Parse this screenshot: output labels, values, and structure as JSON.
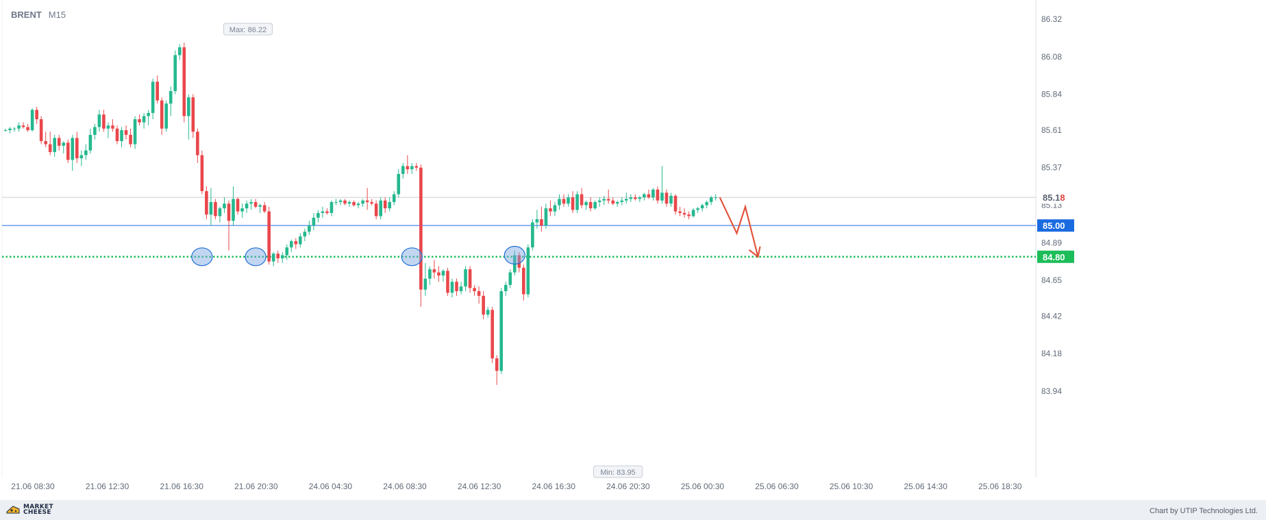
{
  "symbol": {
    "name": "BRENT",
    "timeframe": "M15"
  },
  "footer": {
    "logo_line1": "MARKET",
    "logo_line2": "CHEESE",
    "credit": "Chart by UTIP Technologies Ltd."
  },
  "colors": {
    "bull": "#25b88e",
    "bear": "#e9474b",
    "support": "#1dbd5a",
    "level_line": "#1a6be0",
    "current_line": "#c9ccd2",
    "arrow": "#e0533c",
    "marker": "#1f6fd6"
  },
  "chart_data": {
    "type": "candlestick",
    "ylim": [
      83.83,
      86.4
    ],
    "y_ticks": [
      "86.32",
      "86.08",
      "85.84",
      "85.61",
      "85.37",
      "85.13",
      "84.89",
      "84.65",
      "84.42",
      "84.18",
      "83.94"
    ],
    "x_ticks": [
      "21.06 08:30",
      "21.06 12:30",
      "21.06 16:30",
      "21.06 20:30",
      "24.06 04:30",
      "24.06 08:30",
      "24.06 12:30",
      "24.06 16:30",
      "24.06 20:30",
      "25.06 00:30",
      "25.06 06:30",
      "25.06 10:30",
      "25.06 14:30",
      "25.06 18:30"
    ],
    "max_label": "Max: 86.22",
    "min_label": "Min: 83.95",
    "levels": [
      {
        "label": "85.00",
        "value": 85.0,
        "style": "solid"
      },
      {
        "label": "84.80",
        "value": 84.8,
        "style": "dotted"
      },
      {
        "label_main": "85.1",
        "label_accent": "8",
        "value": 85.18,
        "style": "current"
      }
    ],
    "candles": [
      [
        85.61,
        85.62,
        85.6,
        85.61
      ],
      [
        85.61,
        85.63,
        85.59,
        85.62
      ],
      [
        85.62,
        85.63,
        85.6,
        85.62
      ],
      [
        85.62,
        85.66,
        85.6,
        85.64
      ],
      [
        85.64,
        85.66,
        85.62,
        85.63
      ],
      [
        85.63,
        85.65,
        85.6,
        85.61
      ],
      [
        85.61,
        85.75,
        85.6,
        85.74
      ],
      [
        85.74,
        85.76,
        85.65,
        85.68
      ],
      [
        85.68,
        85.7,
        85.52,
        85.54
      ],
      [
        85.54,
        85.6,
        85.5,
        85.52
      ],
      [
        85.52,
        85.6,
        85.45,
        85.47
      ],
      [
        85.47,
        85.58,
        85.44,
        85.56
      ],
      [
        85.56,
        85.58,
        85.48,
        85.51
      ],
      [
        85.51,
        85.54,
        85.46,
        85.53
      ],
      [
        85.53,
        85.55,
        85.4,
        85.42
      ],
      [
        85.42,
        85.58,
        85.35,
        85.56
      ],
      [
        85.56,
        85.6,
        85.4,
        85.43
      ],
      [
        85.43,
        85.48,
        85.38,
        85.45
      ],
      [
        85.45,
        85.52,
        85.42,
        85.48
      ],
      [
        85.48,
        85.62,
        85.46,
        85.58
      ],
      [
        85.58,
        85.65,
        85.55,
        85.63
      ],
      [
        85.63,
        85.74,
        85.6,
        85.71
      ],
      [
        85.71,
        85.74,
        85.6,
        85.62
      ],
      [
        85.62,
        85.66,
        85.56,
        85.64
      ],
      [
        85.64,
        85.68,
        85.6,
        85.62
      ],
      [
        85.62,
        85.64,
        85.52,
        85.54
      ],
      [
        85.54,
        85.63,
        85.5,
        85.61
      ],
      [
        85.61,
        85.64,
        85.55,
        85.58
      ],
      [
        85.58,
        85.62,
        85.5,
        85.52
      ],
      [
        85.52,
        85.7,
        85.49,
        85.68
      ],
      [
        85.68,
        85.71,
        85.64,
        85.66
      ],
      [
        85.66,
        85.72,
        85.62,
        85.7
      ],
      [
        85.7,
        85.74,
        85.64,
        85.72
      ],
      [
        85.72,
        85.94,
        85.68,
        85.92
      ],
      [
        85.92,
        85.96,
        85.78,
        85.8
      ],
      [
        85.8,
        85.82,
        85.58,
        85.62
      ],
      [
        85.62,
        85.8,
        85.6,
        85.78
      ],
      [
        85.78,
        85.89,
        85.7,
        85.86
      ],
      [
        85.86,
        86.12,
        85.84,
        86.09
      ],
      [
        86.09,
        86.16,
        86.06,
        86.14
      ],
      [
        86.14,
        86.17,
        85.66,
        85.7
      ],
      [
        85.7,
        85.84,
        85.55,
        85.82
      ],
      [
        85.82,
        85.84,
        85.56,
        85.6
      ],
      [
        85.6,
        85.62,
        85.4,
        85.45
      ],
      [
        85.45,
        85.48,
        85.2,
        85.22
      ],
      [
        85.22,
        85.25,
        85.04,
        85.07
      ],
      [
        85.07,
        85.24,
        85.0,
        85.15
      ],
      [
        85.15,
        85.17,
        85.04,
        85.06
      ],
      [
        85.06,
        85.12,
        85.02,
        85.11
      ],
      [
        85.11,
        85.18,
        85.08,
        85.14
      ],
      [
        85.14,
        85.16,
        84.84,
        85.03
      ],
      [
        85.03,
        85.25,
        85.0,
        85.17
      ],
      [
        85.17,
        85.18,
        85.07,
        85.09
      ],
      [
        85.09,
        85.14,
        85.05,
        85.11
      ],
      [
        85.11,
        85.16,
        85.08,
        85.14
      ],
      [
        85.14,
        85.17,
        85.1,
        85.15
      ],
      [
        85.15,
        85.17,
        85.11,
        85.12
      ],
      [
        85.12,
        85.14,
        85.08,
        85.13
      ],
      [
        85.13,
        85.15,
        85.08,
        85.09
      ],
      [
        85.09,
        85.12,
        84.75,
        84.77
      ],
      [
        84.77,
        84.83,
        84.74,
        84.82
      ],
      [
        84.82,
        84.84,
        84.76,
        84.79
      ],
      [
        84.79,
        84.83,
        84.76,
        84.81
      ],
      [
        84.81,
        84.88,
        84.78,
        84.86
      ],
      [
        84.86,
        84.91,
        84.83,
        84.9
      ],
      [
        84.9,
        84.92,
        84.85,
        84.88
      ],
      [
        84.88,
        84.95,
        84.86,
        84.93
      ],
      [
        84.93,
        84.98,
        84.9,
        84.96
      ],
      [
        84.96,
        85.03,
        84.94,
        85.0
      ],
      [
        85.0,
        85.08,
        84.97,
        85.05
      ],
      [
        85.05,
        85.1,
        85.02,
        85.08
      ],
      [
        85.08,
        85.12,
        85.05,
        85.09
      ],
      [
        85.09,
        85.11,
        85.07,
        85.08
      ],
      [
        85.08,
        85.16,
        85.06,
        85.15
      ],
      [
        85.15,
        85.17,
        85.13,
        85.15
      ],
      [
        85.15,
        85.17,
        85.13,
        85.16
      ],
      [
        85.16,
        85.17,
        85.13,
        85.14
      ],
      [
        85.14,
        85.16,
        85.12,
        85.15
      ],
      [
        85.15,
        85.16,
        85.12,
        85.13
      ],
      [
        85.13,
        85.15,
        85.11,
        85.14
      ],
      [
        85.14,
        85.17,
        85.12,
        85.16
      ],
      [
        85.16,
        85.24,
        85.1,
        85.15
      ],
      [
        85.15,
        85.17,
        85.13,
        85.14
      ],
      [
        85.14,
        85.16,
        85.04,
        85.06
      ],
      [
        85.06,
        85.18,
        85.04,
        85.16
      ],
      [
        85.16,
        85.18,
        85.08,
        85.11
      ],
      [
        85.11,
        85.18,
        85.09,
        85.15
      ],
      [
        85.15,
        85.22,
        85.13,
        85.2
      ],
      [
        85.2,
        85.36,
        85.18,
        85.33
      ],
      [
        85.33,
        85.4,
        85.3,
        85.38
      ],
      [
        85.38,
        85.45,
        85.33,
        85.36
      ],
      [
        85.36,
        85.4,
        85.33,
        85.38
      ],
      [
        85.38,
        85.4,
        85.35,
        85.37
      ],
      [
        85.37,
        85.39,
        84.48,
        84.59
      ],
      [
        84.59,
        84.76,
        84.55,
        84.66
      ],
      [
        84.66,
        84.74,
        84.62,
        84.72
      ],
      [
        84.72,
        84.78,
        84.66,
        84.7
      ],
      [
        84.7,
        84.74,
        84.64,
        84.68
      ],
      [
        84.68,
        84.72,
        84.64,
        84.71
      ],
      [
        84.71,
        84.73,
        84.55,
        84.57
      ],
      [
        84.57,
        84.66,
        84.54,
        84.64
      ],
      [
        84.64,
        84.66,
        84.55,
        84.58
      ],
      [
        84.58,
        84.64,
        84.56,
        84.61
      ],
      [
        84.61,
        84.74,
        84.58,
        84.72
      ],
      [
        84.72,
        84.74,
        84.57,
        84.6
      ],
      [
        84.6,
        84.62,
        84.55,
        84.58
      ],
      [
        84.58,
        84.61,
        84.5,
        84.55
      ],
      [
        84.55,
        84.58,
        84.4,
        84.43
      ],
      [
        84.43,
        84.48,
        84.41,
        84.46
      ],
      [
        84.46,
        84.48,
        84.12,
        84.15
      ],
      [
        84.15,
        84.17,
        83.98,
        84.07
      ],
      [
        84.07,
        84.6,
        84.05,
        84.58
      ],
      [
        84.58,
        84.64,
        84.55,
        84.62
      ],
      [
        84.62,
        84.72,
        84.6,
        84.7
      ],
      [
        84.7,
        84.84,
        84.68,
        84.81
      ],
      [
        84.81,
        84.83,
        84.7,
        84.73
      ],
      [
        84.73,
        84.75,
        84.52,
        84.56
      ],
      [
        84.56,
        84.88,
        84.54,
        84.86
      ],
      [
        84.86,
        85.04,
        84.84,
        85.02
      ],
      [
        85.02,
        85.1,
        84.98,
        85.04
      ],
      [
        85.04,
        85.12,
        84.96,
        85.0
      ],
      [
        85.0,
        85.14,
        84.98,
        85.11
      ],
      [
        85.11,
        85.16,
        85.06,
        85.09
      ],
      [
        85.09,
        85.15,
        85.06,
        85.13
      ],
      [
        85.13,
        85.2,
        85.1,
        85.17
      ],
      [
        85.17,
        85.2,
        85.12,
        85.14
      ],
      [
        85.14,
        85.2,
        85.12,
        85.18
      ],
      [
        85.18,
        85.22,
        85.08,
        85.1
      ],
      [
        85.1,
        85.22,
        85.08,
        85.2
      ],
      [
        85.2,
        85.24,
        85.11,
        85.13
      ],
      [
        85.13,
        85.16,
        85.1,
        85.15
      ],
      [
        85.15,
        85.18,
        85.09,
        85.11
      ],
      [
        85.11,
        85.16,
        85.1,
        85.15
      ],
      [
        85.15,
        85.18,
        85.12,
        85.16
      ],
      [
        85.16,
        85.19,
        85.13,
        85.17
      ],
      [
        85.17,
        85.23,
        85.14,
        85.16
      ],
      [
        85.16,
        85.18,
        85.13,
        85.14
      ],
      [
        85.14,
        85.16,
        85.12,
        85.15
      ],
      [
        85.15,
        85.18,
        85.13,
        85.16
      ],
      [
        85.16,
        85.21,
        85.14,
        85.17
      ],
      [
        85.17,
        85.2,
        85.15,
        85.18
      ],
      [
        85.18,
        85.2,
        85.16,
        85.17
      ],
      [
        85.17,
        85.19,
        85.15,
        85.18
      ],
      [
        85.18,
        85.21,
        85.16,
        85.2
      ],
      [
        85.2,
        85.23,
        85.17,
        85.18
      ],
      [
        85.18,
        85.24,
        85.16,
        85.23
      ],
      [
        85.23,
        85.25,
        85.14,
        85.16
      ],
      [
        85.16,
        85.38,
        85.14,
        85.21
      ],
      [
        85.21,
        85.23,
        85.12,
        85.14
      ],
      [
        85.14,
        85.21,
        85.12,
        85.19
      ],
      [
        85.19,
        85.2,
        85.07,
        85.09
      ],
      [
        85.09,
        85.12,
        85.06,
        85.08
      ],
      [
        85.08,
        85.11,
        85.05,
        85.07
      ],
      [
        85.07,
        85.09,
        85.04,
        85.06
      ],
      [
        85.06,
        85.11,
        85.05,
        85.1
      ],
      [
        85.1,
        85.12,
        85.08,
        85.11
      ],
      [
        85.11,
        85.14,
        85.09,
        85.13
      ],
      [
        85.13,
        85.16,
        85.11,
        85.15
      ],
      [
        85.15,
        85.19,
        85.13,
        85.18
      ],
      [
        85.18,
        85.2,
        85.16,
        85.18
      ]
    ],
    "markers": [
      {
        "candle": 44,
        "value": 84.8
      },
      {
        "candle": 56,
        "value": 84.8
      },
      {
        "candle": 91,
        "value": 84.8
      },
      {
        "candle": 114,
        "value": 84.81
      }
    ],
    "forecast_arrow": [
      [
        85.18,
        0
      ],
      [
        84.95,
        4
      ],
      [
        85.12,
        6
      ],
      [
        84.8,
        9
      ]
    ]
  }
}
